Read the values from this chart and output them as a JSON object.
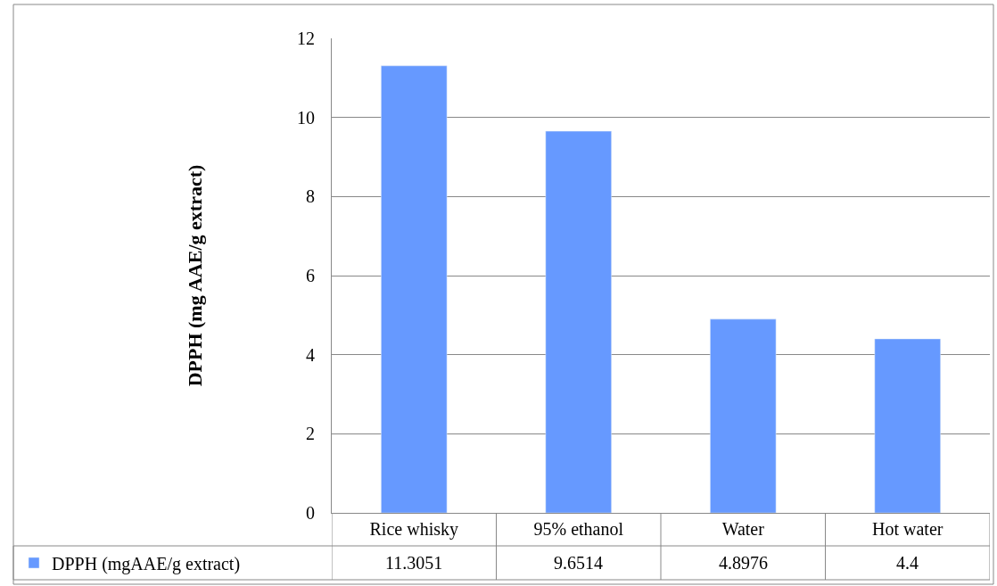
{
  "chart_data": {
    "type": "bar",
    "ylabel": "DPPH (mg AAE/g extract)",
    "categories": [
      "Rice whisky",
      "95% ethanol",
      "Water",
      "Hot water"
    ],
    "series": [
      {
        "name": "DPPH (mgAAE/g extract)",
        "color": "#6699ff",
        "values": [
          11.3051,
          9.6514,
          4.8976,
          4.4
        ]
      }
    ],
    "ylim": [
      0,
      12
    ],
    "yticks": [
      0,
      2,
      4,
      6,
      8,
      10,
      12
    ],
    "grid": "y",
    "legend": "bottom left",
    "data_labels": true
  }
}
